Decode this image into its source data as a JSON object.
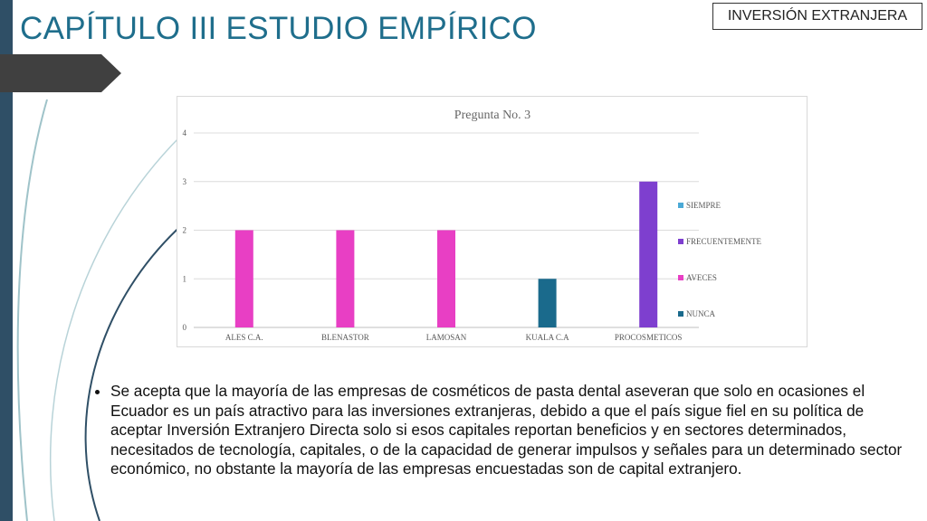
{
  "slide": {
    "title": "CAPÍTULO III ESTUDIO EMPÍRICO",
    "badge": "INVERSIÓN EXTRANJERA"
  },
  "body": {
    "bullet": "Se acepta que la mayoría de las empresas de cosméticos de pasta dental aseveran que solo en ocasiones el Ecuador es un país atractivo para las inversiones extranjeras, debido a que el país sigue fiel en su política de aceptar Inversión Extranjero Directa solo si esos capitales reportan beneficios y en sectores determinados, necesitados de tecnología, capitales, o de la capacidad de generar impulsos y señales para un determinado sector económico, no obstante la mayoría de las empresas encuestadas son de capital extranjero."
  },
  "chart_data": {
    "type": "bar",
    "title": "Pregunta No. 3",
    "categories": [
      "ALES C.A.",
      "BLENASTOR",
      "LAMOSAN",
      "KUALA C.A",
      "PROCOSMETICOS"
    ],
    "series": [
      {
        "name": "SIEMPRE",
        "color": "#4aa9d6",
        "values": [
          0,
          0,
          0,
          0,
          0
        ]
      },
      {
        "name": "FRECUENTEMENTE",
        "color": "#7e3fcf",
        "values": [
          0,
          0,
          0,
          0,
          3
        ]
      },
      {
        "name": "AVECES",
        "color": "#e83fc4",
        "values": [
          2,
          2,
          2,
          0,
          0
        ]
      },
      {
        "name": "NUNCA",
        "color": "#1a6a8c",
        "values": [
          0,
          0,
          0,
          1,
          0
        ]
      }
    ],
    "ylim": [
      0,
      4
    ],
    "yticks": [
      "0",
      "1",
      "2",
      "3",
      "4"
    ],
    "grid": true,
    "legend": "right"
  }
}
